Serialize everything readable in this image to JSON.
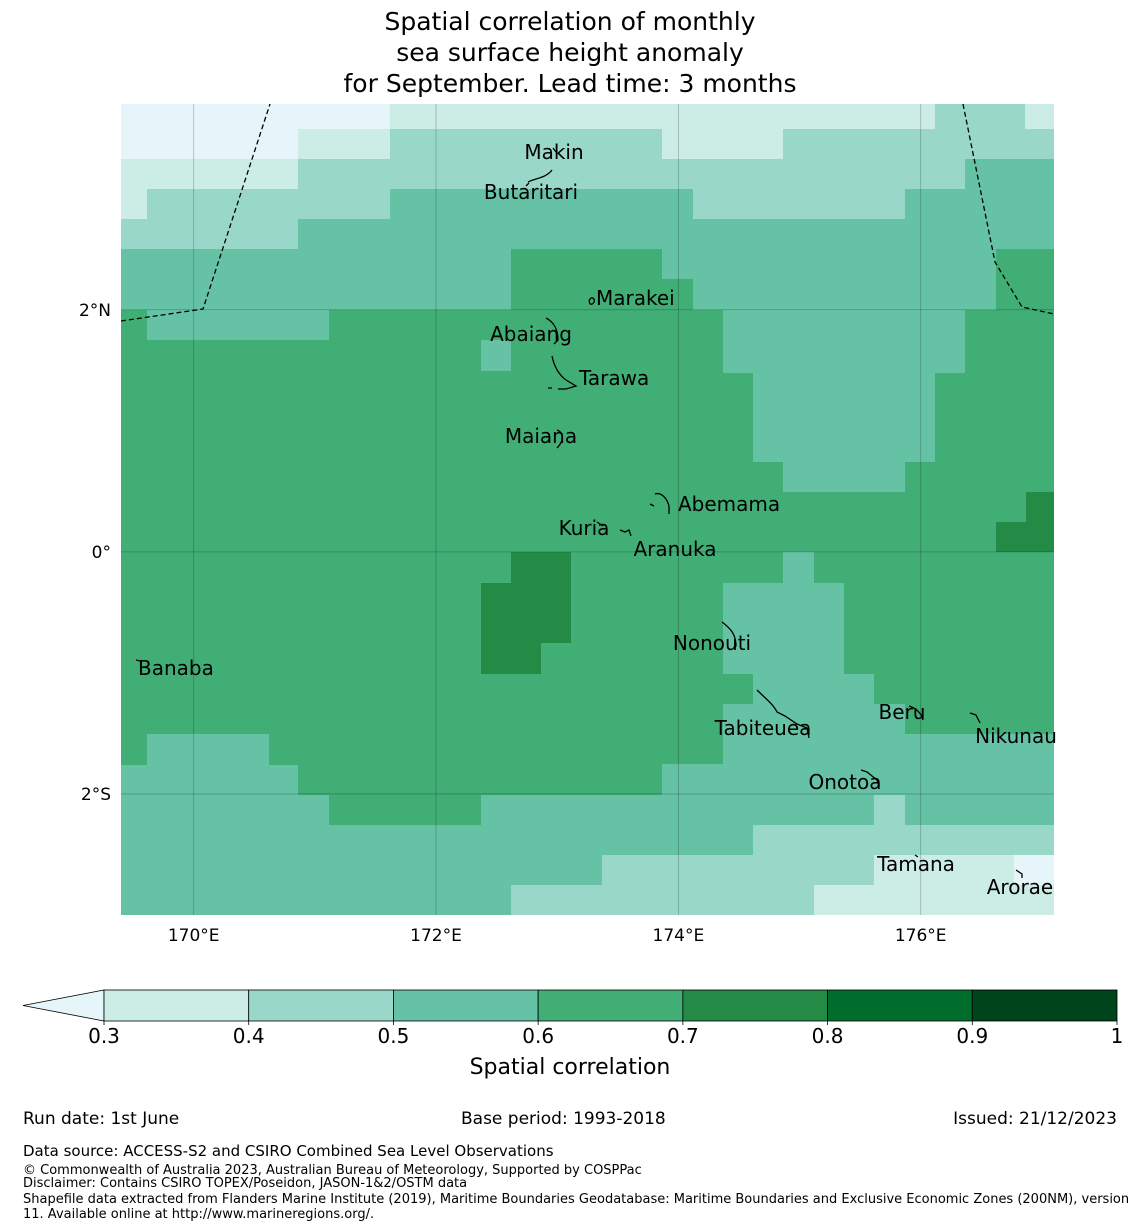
{
  "title": {
    "line1": "Spatial correlation of monthly",
    "line2": "sea surface height anomaly",
    "line3": "for September. Lead time: 3 months"
  },
  "map": {
    "lon_range": [
      169.4,
      177.1
    ],
    "lat_range": [
      -3.0,
      3.7
    ],
    "lon_ticks": [
      {
        "value": 170,
        "label": "170°E"
      },
      {
        "value": 172,
        "label": "172°E"
      },
      {
        "value": 174,
        "label": "174°E"
      },
      {
        "value": 176,
        "label": "176°E"
      }
    ],
    "lat_ticks": [
      {
        "value": 2,
        "label": "2°N"
      },
      {
        "value": 0,
        "label": "0°"
      },
      {
        "value": -2,
        "label": "2°S"
      }
    ],
    "islands": [
      {
        "name": "Makin",
        "lon": 172.98,
        "lat": 3.33
      },
      {
        "name": "Butaritari",
        "lon": 172.8,
        "lat": 3.0
      },
      {
        "name": "Marakei",
        "lon": 173.48,
        "lat": 2.1
      },
      {
        "name": "Abaiang",
        "lon": 172.8,
        "lat": 1.8
      },
      {
        "name": "Tarawa",
        "lon": 173.3,
        "lat": 1.44
      },
      {
        "name": "Maiana",
        "lon": 172.85,
        "lat": 0.95
      },
      {
        "name": "Abemama",
        "lon": 174.45,
        "lat": 0.4
      },
      {
        "name": "Kuria",
        "lon": 172.85,
        "lat": 0.2
      },
      {
        "name": "Aranuka",
        "lon": 173.8,
        "lat": 0.02
      },
      {
        "name": "Nonouti",
        "lon": 174.28,
        "lat": -0.75
      },
      {
        "name": "Banaba",
        "lon": 169.85,
        "lat": -0.96
      },
      {
        "name": "Tabiteuea",
        "lon": 174.7,
        "lat": -1.45
      },
      {
        "name": "Beru",
        "lon": 175.85,
        "lat": -1.32
      },
      {
        "name": "Nikunau",
        "lon": 176.8,
        "lat": -1.52
      },
      {
        "name": "Onotoa",
        "lon": 175.45,
        "lat": -1.88
      },
      {
        "name": "Tamana",
        "lon": 175.97,
        "lat": -2.55
      },
      {
        "name": "Arorae",
        "lon": 176.82,
        "lat": -2.74
      }
    ]
  },
  "colorbar": {
    "label": "Spatial correlation",
    "ticks": [
      "0.3",
      "0.4",
      "0.5",
      "0.6",
      "0.7",
      "0.8",
      "0.9",
      "1"
    ],
    "colors": [
      "#e5f5f9",
      "#ccece6",
      "#99d8c9",
      "#66c2a4",
      "#41ae76",
      "#238b45",
      "#006d2c",
      "#00441b"
    ]
  },
  "footer": {
    "run_date": "Run date: 1st June",
    "base_period": "Base period: 1993-2018",
    "issued": "Issued: 21/12/2023",
    "data_source": "Data source: ACCESS-S2 and CSIRO Combined Sea Level Observations",
    "copyright": "© Commonwealth of Australia 2023, Australian Bureau of Meteorology, Supported by COSPPac",
    "disclaimer": "Disclaimer: Contains CSIRO TOPEX/Poseidon, JASON-1&2/OSTM data",
    "shapefile": "Shapefile data extracted from Flanders Marine Institute (2019), Maritime Boundaries Geodatabase: Maritime Boundaries and Exclusive Economic Zones (200NM), version 11. Available online at http://www.marineregions.org/."
  }
}
